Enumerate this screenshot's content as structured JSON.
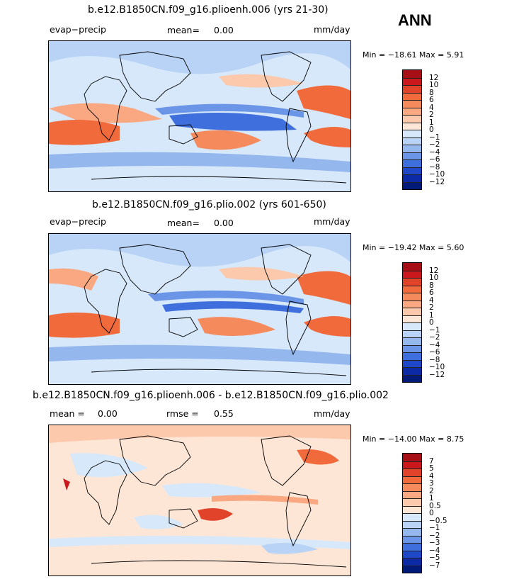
{
  "season": "ANN",
  "panels": [
    {
      "title": "b.e12.B1850CN.f09_g16.plioenh.006 (yrs 21-30)",
      "left_label": "evap−precip",
      "mean_label": "mean=",
      "mean_value": "0.00",
      "units": "mm/day",
      "minmax": "Min = −18.61  Max =    5.91",
      "colorbar_ticks": [
        "12",
        "10",
        "8",
        "6",
        "4",
        "2",
        "1",
        "0",
        "−1",
        "−2",
        "−4",
        "−6",
        "−8",
        "−10",
        "−12"
      ],
      "colorbar_colors": [
        "#a50f15",
        "#cb181d",
        "#e0432a",
        "#f06a3c",
        "#f58a5c",
        "#f9a882",
        "#fcc9ad",
        "#fee6d6",
        "#d7e8fb",
        "#b8d3f5",
        "#94b8ee",
        "#6b95e6",
        "#3f6fdc",
        "#1f48c8",
        "#0d2aa6",
        "#001a7a"
      ]
    },
    {
      "title": "b.e12.B1850CN.f09_g16.plio.002 (yrs 601-650)",
      "left_label": "evap−precip",
      "mean_label": "mean=",
      "mean_value": "0.00",
      "units": "mm/day",
      "minmax": "Min = −19.42  Max =    5.60",
      "colorbar_ticks": [
        "12",
        "10",
        "8",
        "6",
        "4",
        "2",
        "1",
        "0",
        "−1",
        "−2",
        "−4",
        "−6",
        "−8",
        "−10",
        "−12"
      ],
      "colorbar_colors": [
        "#a50f15",
        "#cb181d",
        "#e0432a",
        "#f06a3c",
        "#f58a5c",
        "#f9a882",
        "#fcc9ad",
        "#fee6d6",
        "#d7e8fb",
        "#b8d3f5",
        "#94b8ee",
        "#6b95e6",
        "#3f6fdc",
        "#1f48c8",
        "#0d2aa6",
        "#001a7a"
      ]
    },
    {
      "title": "b.e12.B1850CN.f09_g16.plioenh.006 - b.e12.B1850CN.f09_g16.plio.002",
      "mean_label": "mean =",
      "mean_value": "0.00",
      "rmse_label": "rmse =",
      "rmse_value": "0.55",
      "units": "mm/day",
      "minmax": "Min = −14.00  Max =    8.75",
      "colorbar_ticks": [
        "7",
        "5",
        "4",
        "3",
        "2",
        "1",
        "0.5",
        "0",
        "−0.5",
        "−1",
        "−2",
        "−3",
        "−4",
        "−5",
        "−7"
      ],
      "colorbar_colors": [
        "#a50f15",
        "#cb181d",
        "#e0432a",
        "#f06a3c",
        "#f58a5c",
        "#f9a882",
        "#fcc9ad",
        "#fee6d6",
        "#d7e8fb",
        "#b8d3f5",
        "#94b8ee",
        "#6b95e6",
        "#3f6fdc",
        "#1f48c8",
        "#0d2aa6",
        "#001a7a"
      ]
    }
  ],
  "chart_data": [
    {
      "type": "heatmap",
      "title": "b.e12.B1850CN.f09_g16.plioenh.006 (yrs 21-30)",
      "variable": "evap−precip",
      "units": "mm/day",
      "mean": 0.0,
      "min": -18.61,
      "max": 5.91,
      "contour_levels": [
        -12,
        -10,
        -8,
        -6,
        -4,
        -2,
        -1,
        0,
        1,
        2,
        4,
        6,
        8,
        10,
        12
      ],
      "projection": "global lat-lon, Pacific-centred"
    },
    {
      "type": "heatmap",
      "title": "b.e12.B1850CN.f09_g16.plio.002 (yrs 601-650)",
      "variable": "evap−precip",
      "units": "mm/day",
      "mean": 0.0,
      "min": -19.42,
      "max": 5.6,
      "contour_levels": [
        -12,
        -10,
        -8,
        -6,
        -4,
        -2,
        -1,
        0,
        1,
        2,
        4,
        6,
        8,
        10,
        12
      ],
      "projection": "global lat-lon, Pacific-centred"
    },
    {
      "type": "heatmap",
      "title": "b.e12.B1850CN.f09_g16.plioenh.006 - b.e12.B1850CN.f09_g16.plio.002",
      "units": "mm/day",
      "mean": 0.0,
      "rmse": 0.55,
      "min": -14.0,
      "max": 8.75,
      "contour_levels": [
        -7,
        -5,
        -4,
        -3,
        -2,
        -1,
        -0.5,
        0,
        0.5,
        1,
        2,
        3,
        4,
        5,
        7
      ],
      "projection": "global lat-lon, Pacific-centred"
    }
  ]
}
